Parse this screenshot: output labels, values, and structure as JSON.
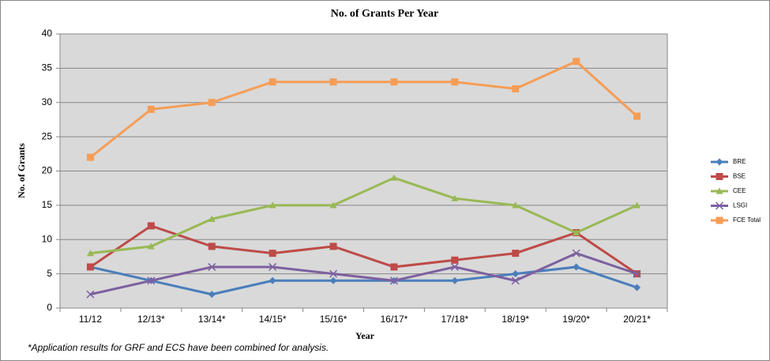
{
  "chart_data": {
    "type": "line",
    "title": "No. of Grants Per Year",
    "x_label": "Year",
    "y_label": "No. of Grants",
    "footnote": "*Application results for GRF and ECS have been combined for analysis.",
    "categories": [
      "11/12",
      "12/13*",
      "13/14*",
      "14/15*",
      "15/16*",
      "16/17*",
      "17/18*",
      "18/19*",
      "19/20*",
      "20/21*"
    ],
    "series": [
      {
        "name": "BRE",
        "color": "#4a7ebb",
        "marker": "diamond",
        "values": [
          6,
          4,
          2,
          4,
          4,
          4,
          4,
          5,
          6,
          3
        ]
      },
      {
        "name": "BSE",
        "color": "#be4b48",
        "marker": "square",
        "values": [
          6,
          12,
          9,
          8,
          9,
          6,
          7,
          8,
          11,
          5
        ]
      },
      {
        "name": "CEE",
        "color": "#98b954",
        "marker": "triangle",
        "values": [
          8,
          9,
          13,
          15,
          15,
          19,
          16,
          15,
          11,
          15
        ]
      },
      {
        "name": "LSGI",
        "color": "#7d60a0",
        "marker": "x",
        "values": [
          2,
          4,
          6,
          6,
          5,
          4,
          6,
          4,
          8,
          5
        ]
      },
      {
        "name": "FCE Total",
        "color": "#f59d56",
        "marker": "square",
        "values": [
          22,
          29,
          30,
          33,
          33,
          33,
          33,
          32,
          36,
          28
        ]
      }
    ],
    "ylim": [
      0,
      40
    ],
    "yticks": [
      0,
      5,
      10,
      15,
      20,
      25,
      30,
      35,
      40
    ],
    "grid": true,
    "legend": "right"
  }
}
